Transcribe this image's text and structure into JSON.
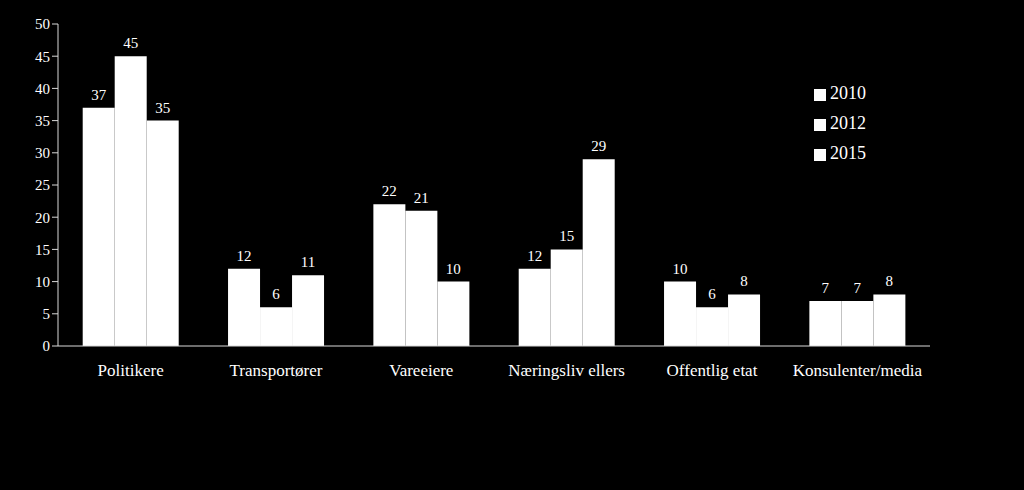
{
  "chart_data": {
    "type": "bar",
    "categories": [
      "Politikere",
      "Transportører",
      "Vareeiere",
      "Næringsliv ellers",
      "Offentlig etat",
      "Konsulenter/media"
    ],
    "series": [
      {
        "name": "2010",
        "color": "#ffffff",
        "values": [
          37,
          12,
          22,
          12,
          10,
          7
        ]
      },
      {
        "name": "2012",
        "color": "#ffffff",
        "values": [
          45,
          6,
          21,
          15,
          6,
          7
        ]
      },
      {
        "name": "2015",
        "color": "#ffffff",
        "values": [
          35,
          11,
          10,
          29,
          8,
          8
        ]
      }
    ],
    "ylim": [
      0,
      50
    ],
    "yticks": [
      0,
      5,
      10,
      15,
      20,
      25,
      30,
      35,
      40,
      45,
      50
    ],
    "grid": false,
    "legend": "upper right",
    "data_labels": true
  }
}
